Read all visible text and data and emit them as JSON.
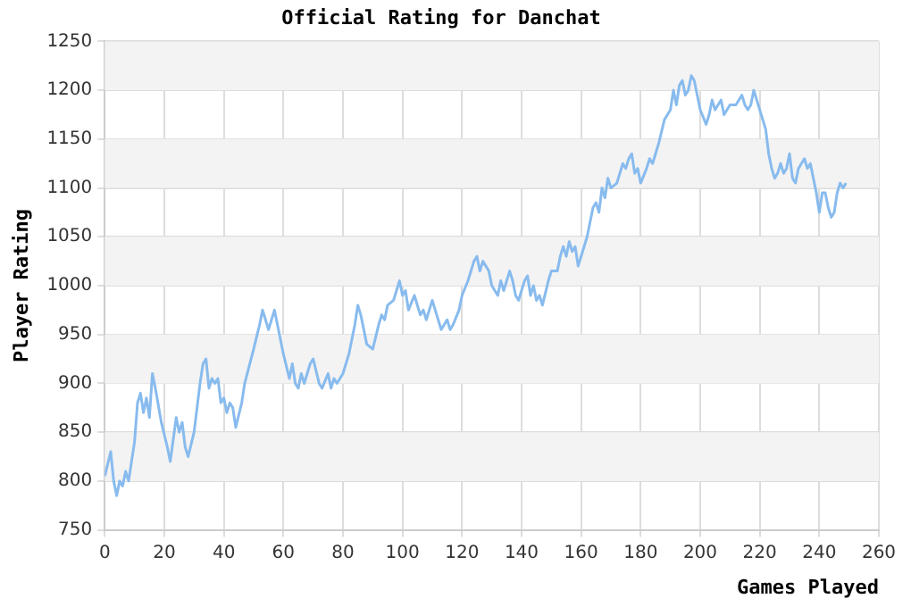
{
  "chart_data": {
    "type": "line",
    "title": "Official Rating for Danchat",
    "xlabel": "Games Played",
    "ylabel": "Player Rating",
    "xlim": [
      0,
      260
    ],
    "xticks": [
      0,
      20,
      40,
      60,
      80,
      100,
      120,
      140,
      160,
      180,
      200,
      220,
      240,
      260
    ],
    "ylim": [
      750,
      1250
    ],
    "yticks": [
      750,
      800,
      850,
      900,
      950,
      1000,
      1050,
      1100,
      1150,
      1200,
      1250
    ],
    "grid": true,
    "legend": false,
    "marker": "none",
    "line_style": "solid",
    "x": [
      0,
      2,
      3,
      4,
      5,
      6,
      7,
      8,
      10,
      11,
      12,
      13,
      14,
      15,
      16,
      17,
      19,
      21,
      22,
      24,
      25,
      26,
      27,
      28,
      30,
      32,
      33,
      34,
      35,
      36,
      37,
      38,
      39,
      40,
      41,
      42,
      43,
      44,
      46,
      47,
      50,
      52,
      53,
      54,
      55,
      57,
      58,
      60,
      62,
      63,
      64,
      65,
      66,
      67,
      69,
      70,
      72,
      73,
      75,
      76,
      77,
      78,
      80,
      82,
      84,
      85,
      86,
      88,
      90,
      92,
      93,
      94,
      95,
      97,
      99,
      100,
      101,
      102,
      104,
      106,
      107,
      108,
      110,
      111,
      112,
      113,
      115,
      116,
      117,
      119,
      120,
      122,
      124,
      125,
      126,
      127,
      129,
      130,
      132,
      133,
      134,
      136,
      137,
      138,
      139,
      141,
      142,
      143,
      144,
      145,
      146,
      147,
      149,
      150,
      152,
      153,
      154,
      155,
      156,
      157,
      158,
      159,
      161,
      162,
      164,
      165,
      166,
      167,
      168,
      169,
      170,
      172,
      174,
      175,
      176,
      177,
      178,
      179,
      180,
      182,
      183,
      184,
      186,
      188,
      190,
      191,
      192,
      193,
      194,
      195,
      196,
      197,
      198,
      200,
      202,
      203,
      204,
      205,
      206,
      207,
      208,
      210,
      212,
      214,
      215,
      216,
      217,
      218,
      219,
      221,
      222,
      223,
      224,
      225,
      226,
      227,
      228,
      229,
      230,
      231,
      232,
      233,
      235,
      236,
      237,
      238,
      239,
      240,
      241,
      242,
      243,
      244,
      245,
      246,
      247,
      248,
      249
    ],
    "series": [
      {
        "color": "#88bbee",
        "values": [
          805,
          830,
          800,
          785,
          800,
          795,
          810,
          800,
          840,
          880,
          890,
          870,
          885,
          865,
          910,
          895,
          860,
          835,
          820,
          865,
          850,
          860,
          835,
          825,
          850,
          900,
          920,
          925,
          895,
          905,
          900,
          905,
          880,
          885,
          870,
          880,
          875,
          855,
          880,
          900,
          935,
          960,
          975,
          965,
          955,
          975,
          960,
          930,
          905,
          920,
          900,
          895,
          910,
          900,
          920,
          925,
          900,
          895,
          910,
          895,
          905,
          900,
          910,
          930,
          960,
          980,
          970,
          940,
          935,
          960,
          970,
          965,
          980,
          985,
          1005,
          990,
          995,
          975,
          990,
          970,
          975,
          965,
          985,
          975,
          965,
          955,
          965,
          955,
          960,
          975,
          990,
          1005,
          1025,
          1030,
          1015,
          1025,
          1015,
          1000,
          990,
          1005,
          995,
          1015,
          1005,
          990,
          985,
          1005,
          1010,
          990,
          1000,
          985,
          990,
          980,
          1005,
          1015,
          1015,
          1030,
          1040,
          1030,
          1045,
          1035,
          1040,
          1020,
          1040,
          1050,
          1080,
          1085,
          1075,
          1100,
          1090,
          1110,
          1100,
          1105,
          1125,
          1120,
          1130,
          1135,
          1115,
          1120,
          1105,
          1120,
          1130,
          1125,
          1145,
          1170,
          1180,
          1200,
          1185,
          1205,
          1210,
          1195,
          1200,
          1215,
          1210,
          1180,
          1165,
          1175,
          1190,
          1180,
          1185,
          1190,
          1175,
          1185,
          1185,
          1195,
          1185,
          1180,
          1185,
          1200,
          1190,
          1170,
          1160,
          1135,
          1120,
          1110,
          1115,
          1125,
          1115,
          1120,
          1135,
          1110,
          1105,
          1120,
          1130,
          1120,
          1125,
          1110,
          1095,
          1075,
          1095,
          1095,
          1080,
          1070,
          1075,
          1095,
          1105,
          1100,
          1105
        ]
      }
    ]
  }
}
